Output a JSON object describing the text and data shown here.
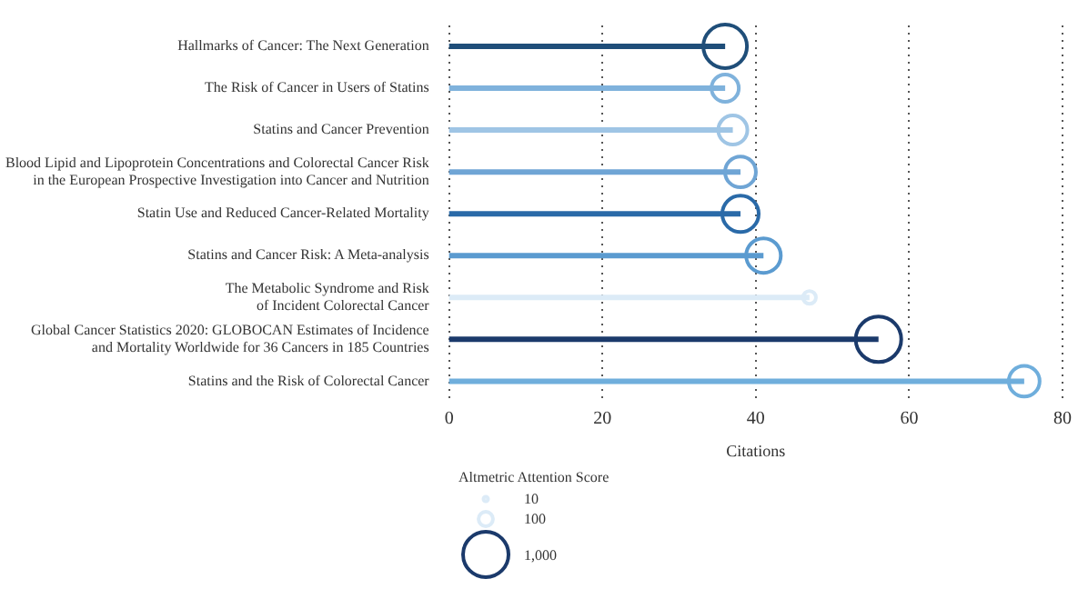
{
  "chart_data": {
    "type": "lollipop",
    "orientation": "horizontal",
    "xlabel": "Citations",
    "legend_title": "Altmetric Attention Score",
    "categories": [
      "Hallmarks of Cancer: The Next Generation",
      "The Risk of Cancer in Users of Statins",
      "Statins and Cancer Prevention",
      "Blood Lipid and Lipoprotein Concentrations and Colorectal Cancer Risk in the European Prospective Investigation into Cancer and Nutrition",
      "Statin Use and Reduced Cancer-Related Mortality",
      "Statins and Cancer Risk: A Meta-analysis",
      "The Metabolic Syndrome and Risk of Incident Colorectal Cancer",
      "Global Cancer Statistics 2020: GLOBOCAN Estimates of Incidence and Mortality Worldwide for 36 Cancers in 185 Countries",
      "Statins and the Risk of Colorectal Cancer"
    ],
    "values": [
      36,
      36,
      37,
      38,
      38,
      41,
      47,
      56,
      75
    ],
    "sizes": [
      920,
      360,
      410,
      460,
      640,
      580,
      80,
      1000,
      460
    ],
    "size_legend": [
      10,
      100,
      {
        "value": 1000,
        "label": "1,000"
      }
    ],
    "colors": [
      "#1f4e79",
      "#7fb2dc",
      "#9fc5e5",
      "#6fa5d5",
      "#2a6aa8",
      "#5b9bd0",
      "#dcebf7",
      "#1b3a6b",
      "#6faedc"
    ],
    "xlim": [
      0,
      80
    ],
    "xticks": [
      0,
      20,
      40,
      60,
      80
    ],
    "grid": "x",
    "marker": "circle"
  }
}
